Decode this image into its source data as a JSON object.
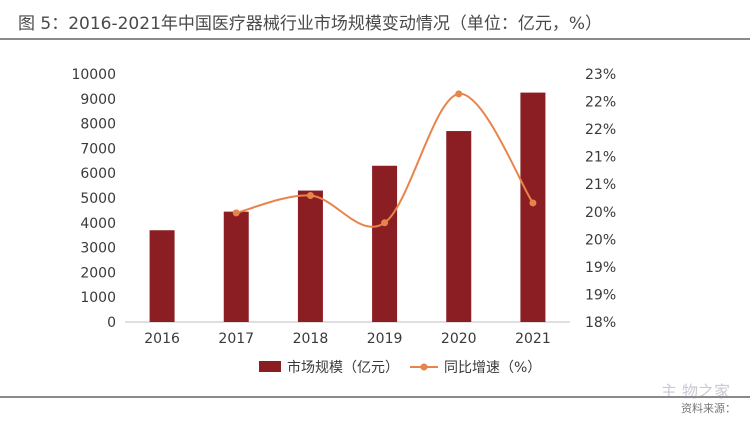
{
  "title": "图 5：2016-2021年中国医疗器械行业市场规模变动情况（单位：亿元，%）",
  "source": "资料来源：",
  "watermark": "主 物之家",
  "chart_data": {
    "type": "bar+line",
    "categories": [
      "2016",
      "2017",
      "2018",
      "2019",
      "2020",
      "2021"
    ],
    "series": [
      {
        "name": "市场规模（亿元）",
        "type": "bar",
        "axis": "left",
        "color": "#8b1e22",
        "values": [
          3700,
          4450,
          5300,
          6300,
          7700,
          9250
        ]
      },
      {
        "name": "同比增速（%）",
        "type": "line",
        "axis": "right",
        "color": "#e8844a",
        "values": [
          null,
          20.2,
          20.55,
          20.0,
          22.6,
          20.4
        ]
      }
    ],
    "left_axis": {
      "min": 0,
      "max": 10000,
      "ticks": [
        "0",
        "1000",
        "2000",
        "3000",
        "4000",
        "5000",
        "6000",
        "7000",
        "8000",
        "9000",
        "10000"
      ]
    },
    "right_axis": {
      "min": 18,
      "max": 23,
      "ticks": [
        "18%",
        "19%",
        "19%",
        "20%",
        "20%",
        "21%",
        "21%",
        "22%",
        "22%",
        "23%"
      ]
    },
    "legend": {
      "position": "bottom"
    },
    "grid": false
  }
}
